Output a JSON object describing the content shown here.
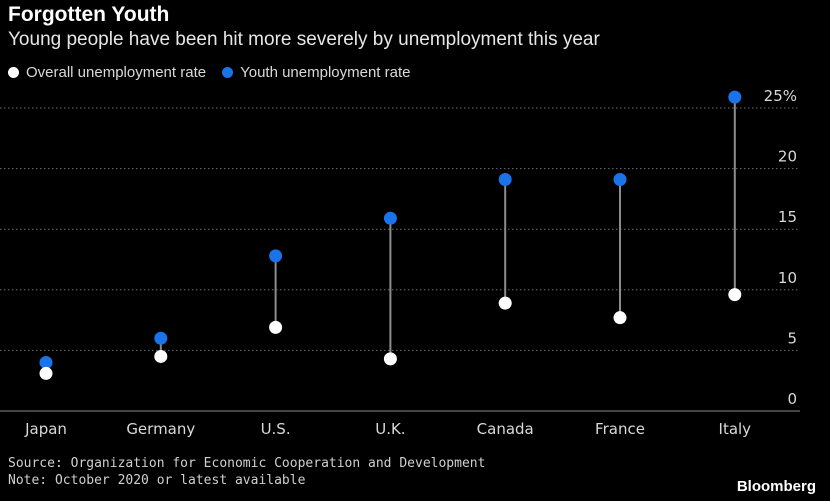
{
  "title": "Forgotten Youth",
  "subtitle": "Young people have been hit more severely by unemployment this year",
  "legend": [
    {
      "label": "Overall unemployment rate",
      "color": "#ffffff"
    },
    {
      "label": "Youth unemployment rate",
      "color": "#1a73e8"
    }
  ],
  "source": "Source: Organization for Economic Cooperation and Development",
  "note": "Note: October 2020 or latest available",
  "brand": "Bloomberg",
  "chart_data": {
    "type": "dumbbell",
    "categories": [
      "Japan",
      "Germany",
      "U.S.",
      "U.K.",
      "Canada",
      "France",
      "Italy"
    ],
    "series": [
      {
        "name": "Overall unemployment rate",
        "color": "#ffffff",
        "values": [
          3.1,
          4.5,
          6.9,
          4.3,
          8.9,
          7.7,
          9.6
        ]
      },
      {
        "name": "Youth unemployment rate",
        "color": "#1a73e8",
        "values": [
          4.0,
          6.0,
          12.8,
          15.9,
          19.1,
          19.1,
          25.9
        ]
      }
    ],
    "ylim": [
      0,
      25
    ],
    "yticks": [
      0,
      5,
      10,
      15,
      20,
      25
    ],
    "ytick_labels": [
      "0",
      "5",
      "10",
      "15",
      "20",
      "25%"
    ],
    "grid": true,
    "y_axis_side": "right",
    "legend_position": "top-left"
  }
}
